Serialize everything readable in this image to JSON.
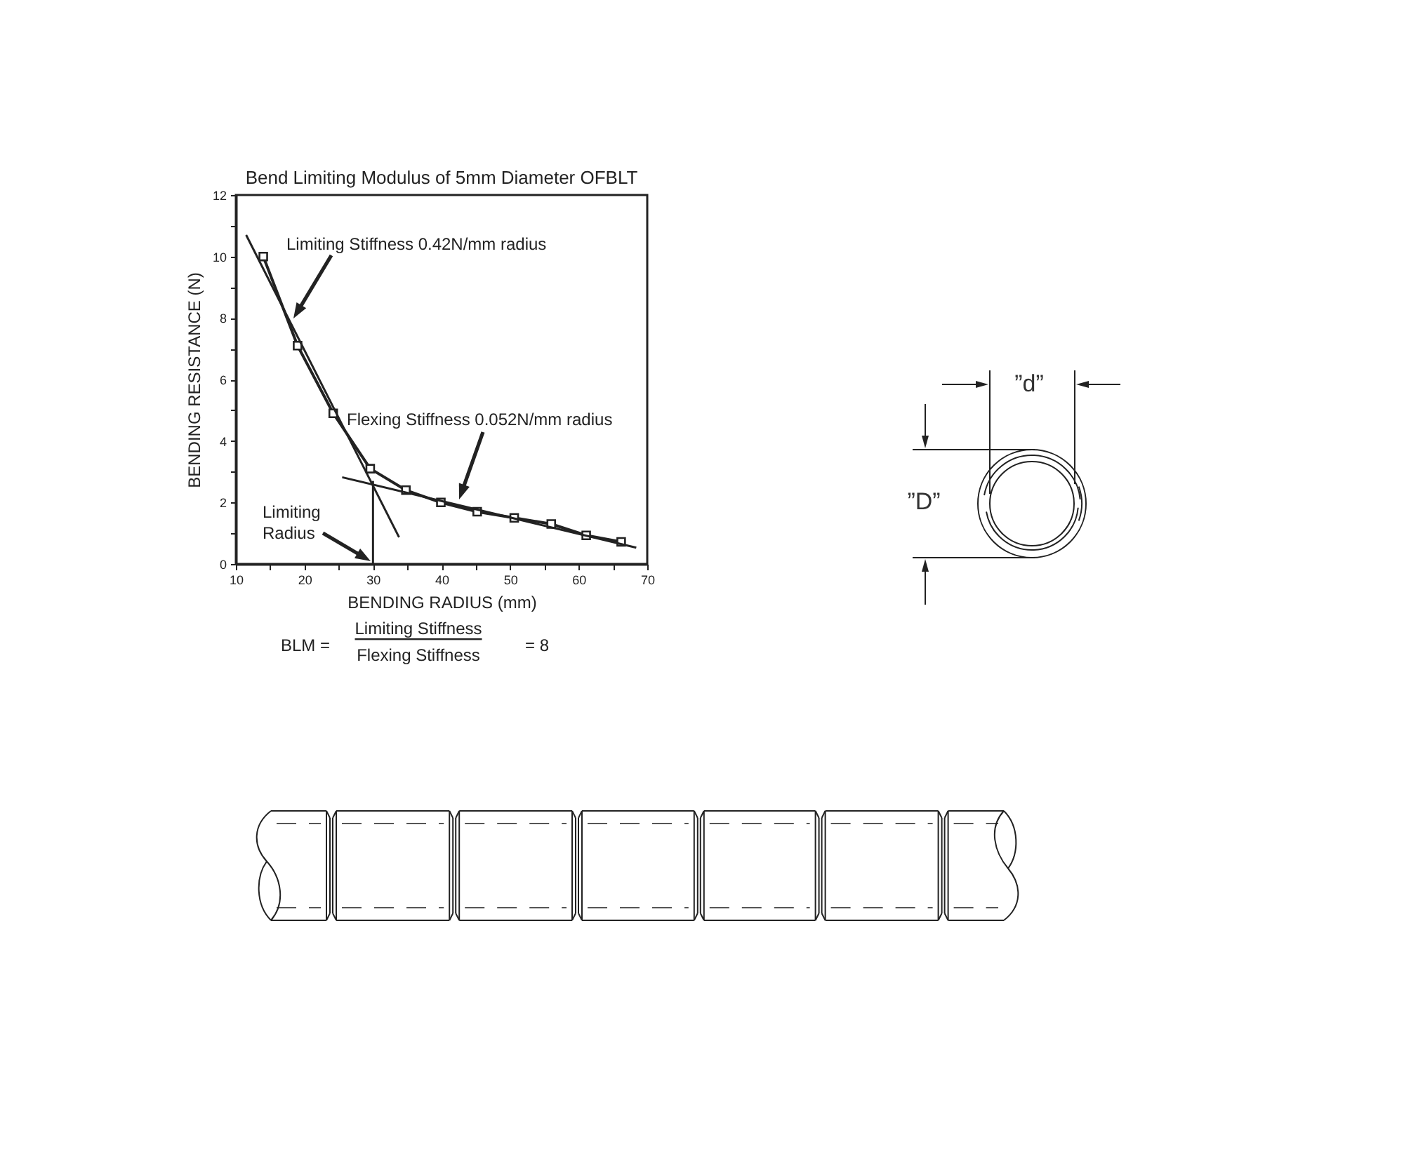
{
  "chart_data": {
    "type": "line",
    "title": "Bend Limiting Modulus of 5mm Diameter OFBLT",
    "xlabel": "BENDING RADIUS (mm)",
    "ylabel": "BENDING RESISTANCE (N)",
    "marker": "square",
    "series": [
      {
        "color": "#222222",
        "x": [
          14,
          19,
          24.2,
          29.6,
          34.8,
          39.9,
          45.2,
          50.6,
          56,
          61.1,
          66.2
        ],
        "values": [
          10,
          7.1,
          4.9,
          3.1,
          2.4,
          2.0,
          1.7,
          1.5,
          1.3,
          0.93,
          0.72
        ]
      },
      {
        "color": "#222222",
        "marker": "none",
        "x": [
          11.5,
          33.8
        ],
        "values": [
          10.7,
          0.87
        ]
      },
      {
        "color": "#222222",
        "marker": "none",
        "x": [
          25.5,
          68.4
        ],
        "values": [
          2.82,
          0.53
        ]
      },
      {
        "color": "#222222",
        "marker": "none",
        "x": [
          30,
          30
        ],
        "values": [
          0,
          2.7
        ]
      }
    ],
    "xlim": [
      10,
      70
    ],
    "xticks": [
      10,
      {
        "value": 15,
        "label": null
      },
      20,
      {
        "value": 25,
        "label": null
      },
      30,
      {
        "value": 35,
        "label": null
      },
      40,
      {
        "value": 45,
        "label": null
      },
      50,
      {
        "value": 55,
        "label": null
      },
      60,
      {
        "value": 65,
        "label": null
      },
      70
    ],
    "ylim": [
      0,
      12
    ],
    "yticks": [
      0,
      {
        "value": 1,
        "label": null
      },
      2,
      {
        "value": 3,
        "label": null
      },
      4,
      {
        "value": 5,
        "label": null
      },
      6,
      {
        "value": 7,
        "label": null
      },
      8,
      {
        "value": 9,
        "label": null
      },
      10,
      {
        "value": 11,
        "label": null
      },
      12
    ],
    "annotations": [
      "Limiting Stiffness 0.42N/mm radius",
      "Flexing Stiffness 0.052N/mm radius",
      "Limiting Radius",
      "BLM =",
      "Limiting Stiffness",
      "Flexing Stiffness",
      "= 8",
      "”d”",
      "”D”"
    ]
  }
}
